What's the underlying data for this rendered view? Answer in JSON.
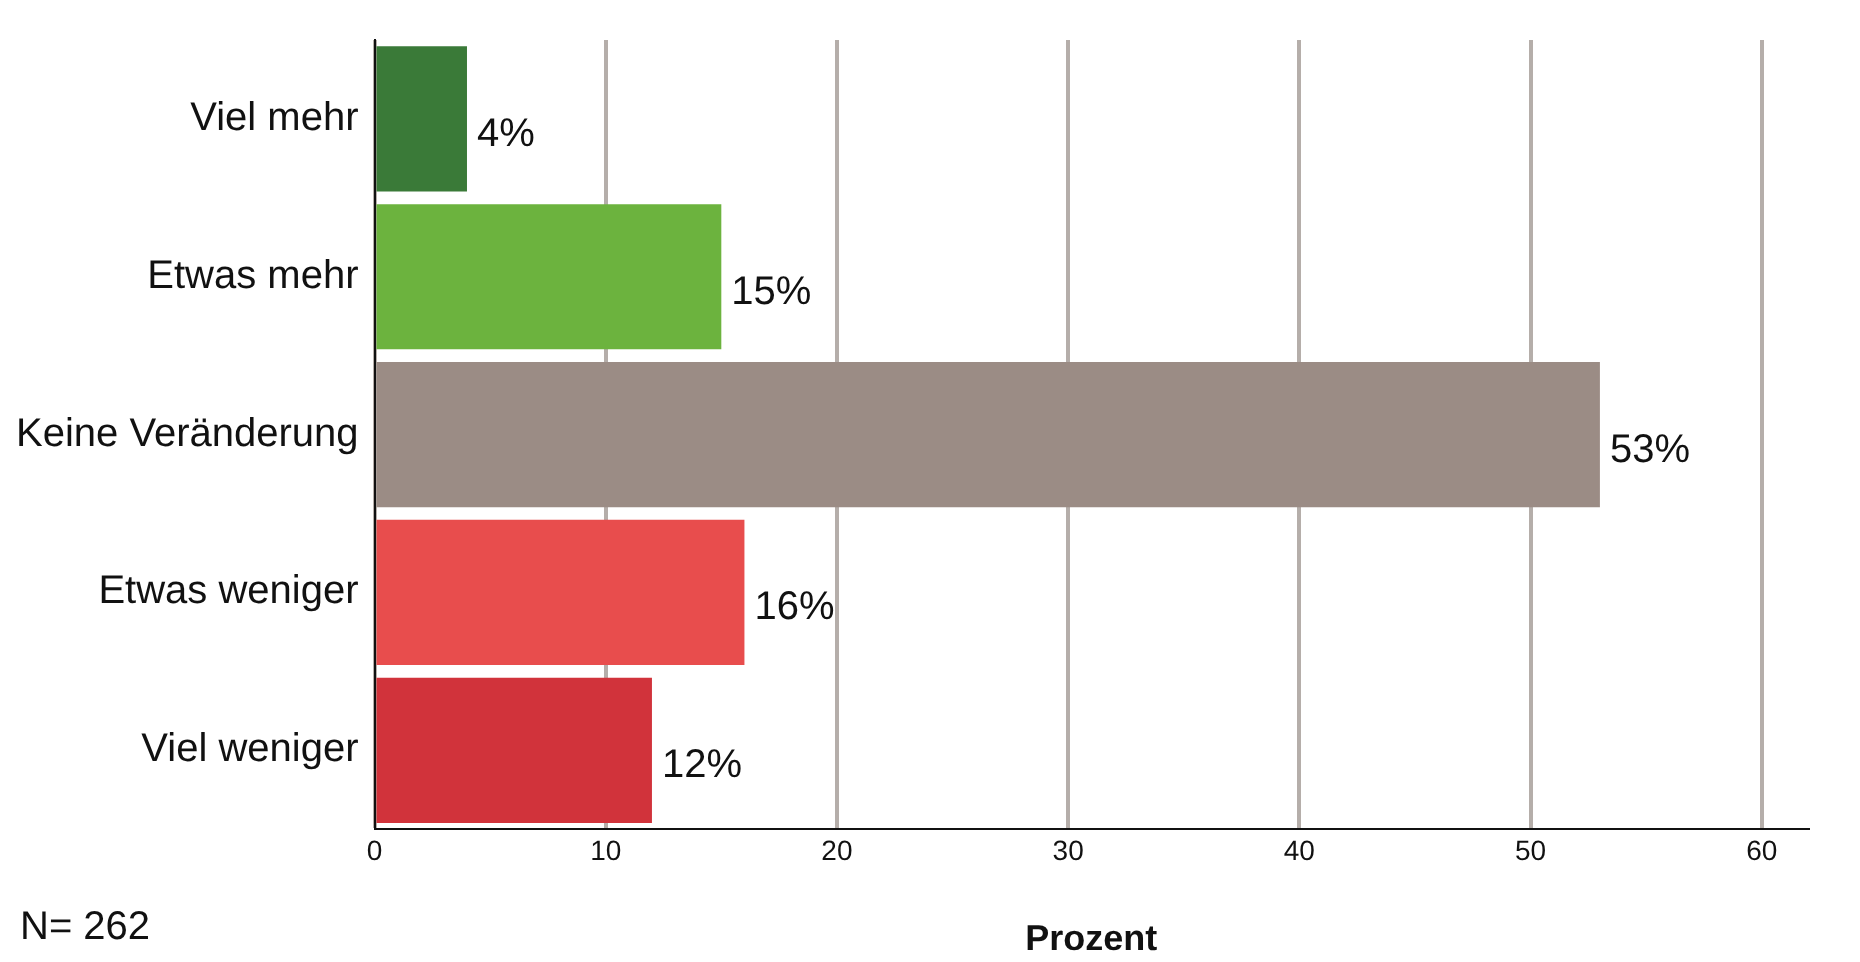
{
  "chart_data": {
    "type": "bar",
    "orientation": "horizontal",
    "categories": [
      "Viel mehr",
      "Etwas mehr",
      "Keine Veränderung",
      "Etwas weniger",
      "Viel weniger"
    ],
    "values": [
      4,
      15,
      53,
      16,
      12
    ],
    "colors": [
      "#3a7a38",
      "#6cb33e",
      "#9b8c85",
      "#e84d4d",
      "#d1333b"
    ],
    "value_labels": [
      "4%",
      "15%",
      "53%",
      "16%",
      "12%"
    ],
    "xlim": [
      0,
      62
    ],
    "xticks": [
      0,
      10,
      20,
      30,
      40,
      50,
      60
    ],
    "grid": "x",
    "xlabel": "Prozent",
    "annotations": [
      "N= 262"
    ]
  }
}
